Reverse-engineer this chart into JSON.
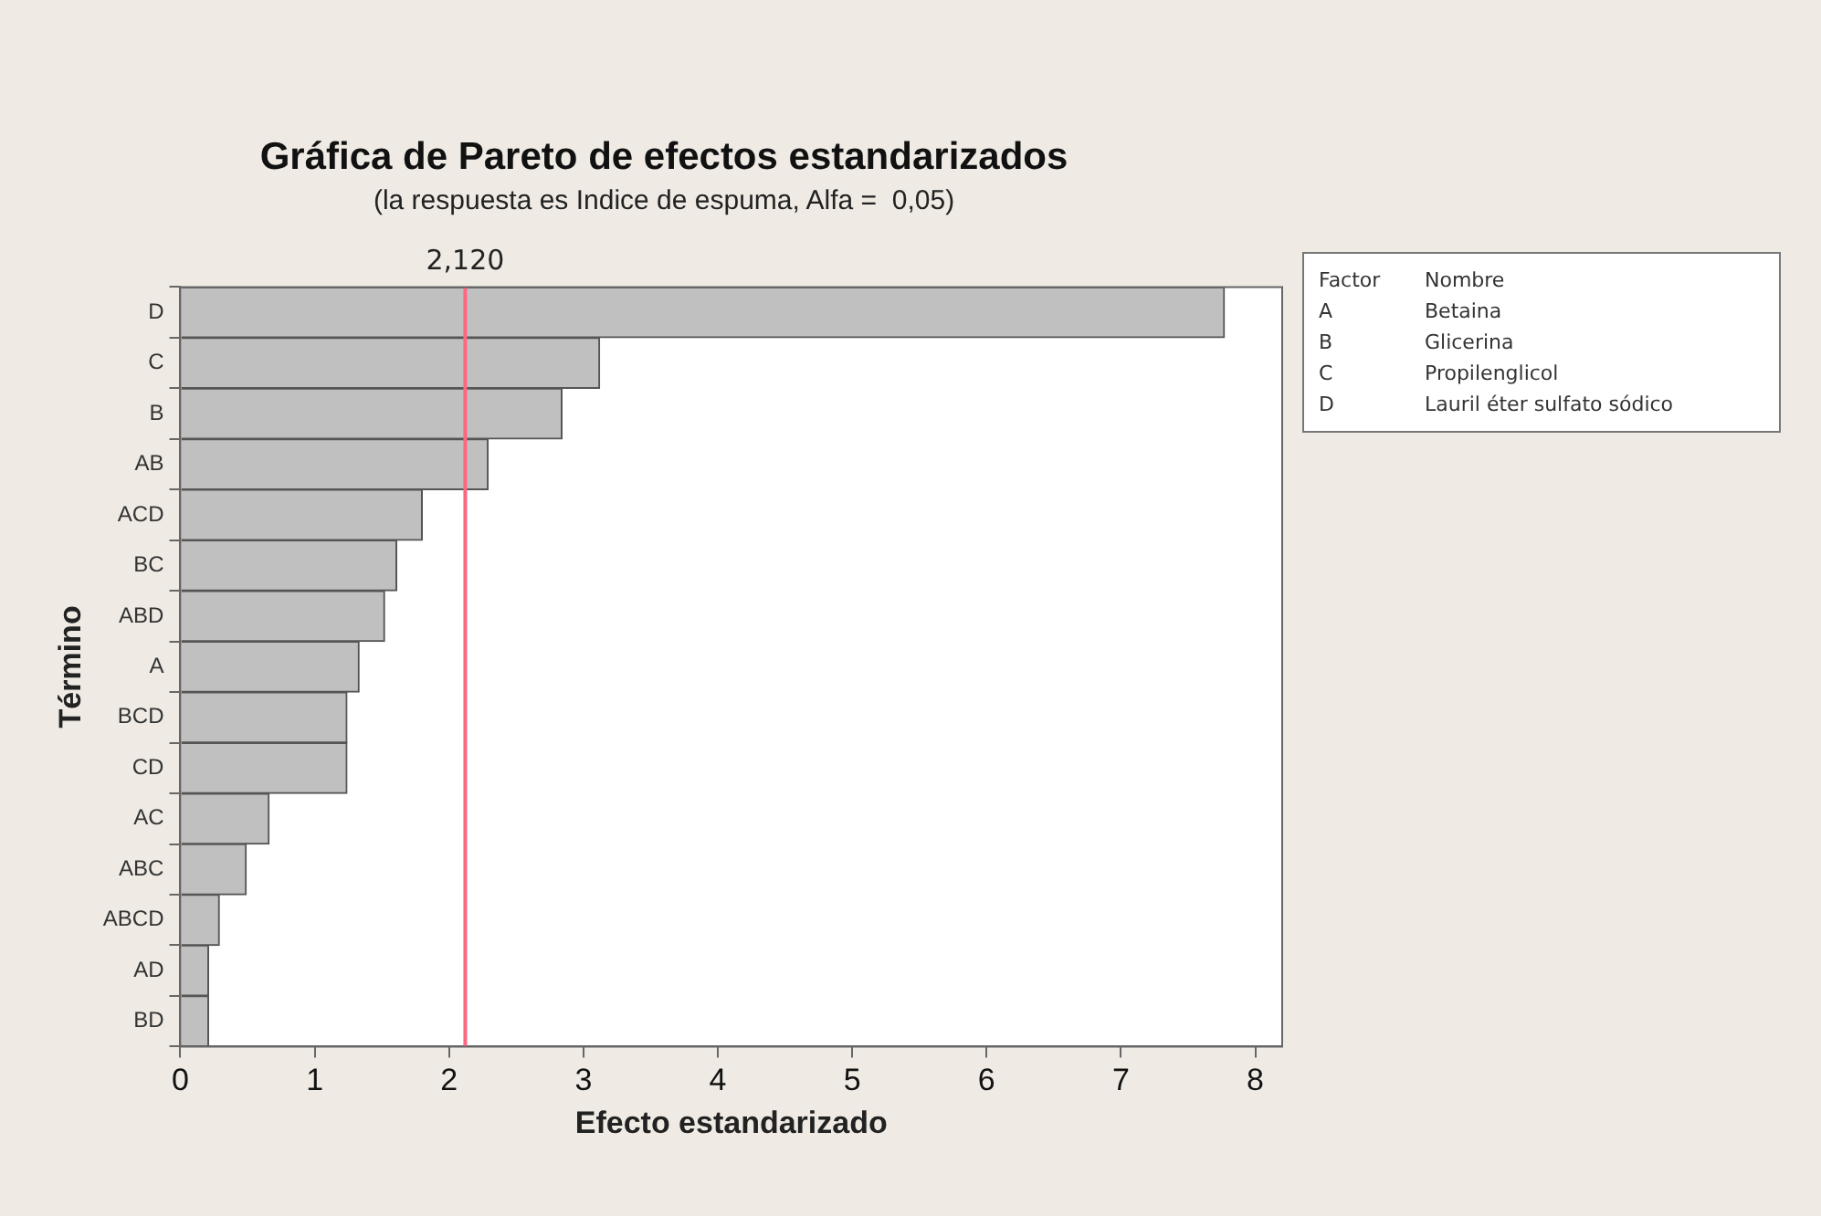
{
  "chart_data": {
    "type": "bar",
    "orientation": "horizontal",
    "title": "Gráfica de Pareto de efectos estandarizados",
    "subtitle": "(la respuesta es Indice de espuma, Alfa =  0,05)",
    "xlabel": "Efecto estandarizado",
    "ylabel": "Término",
    "categories": [
      "D",
      "C",
      "B",
      "AB",
      "ACD",
      "BC",
      "ABD",
      "A",
      "BCD",
      "CD",
      "AC",
      "ABC",
      "ABCD",
      "AD",
      "BD"
    ],
    "values": [
      7.77,
      3.12,
      2.84,
      2.29,
      1.8,
      1.61,
      1.52,
      1.33,
      1.24,
      1.24,
      0.66,
      0.49,
      0.29,
      0.21,
      0.21
    ],
    "color": "#c0c0c0",
    "xlim": [
      0,
      8.2
    ],
    "xticks": [
      0,
      1,
      2,
      3,
      4,
      5,
      6,
      7,
      8
    ],
    "ref_lines": [
      {
        "axis": "x",
        "value": 2.12,
        "label": "2,120",
        "color": "#ff6680"
      }
    ],
    "annotations": [
      "Factor",
      "Nombre",
      "A",
      "Betaina",
      "B",
      "Glicerina",
      "C",
      "Propilenglicol",
      "D",
      "Lauril éter sulfato sódico"
    ]
  }
}
